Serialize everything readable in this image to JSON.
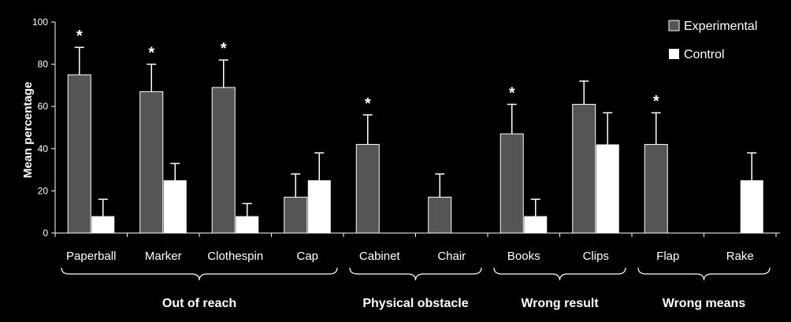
{
  "chart_data": {
    "type": "bar",
    "ylabel": "Mean percentage",
    "ylim": [
      0,
      100
    ],
    "yticks": [
      0,
      20,
      40,
      60,
      80,
      100
    ],
    "categories": [
      "Paperball",
      "Marker",
      "Clothespin",
      "Cap",
      "Cabinet",
      "Chair",
      "Books",
      "Clips",
      "Flap",
      "Rake"
    ],
    "series": [
      {
        "name": "Experimental",
        "color": "#555555",
        "values": [
          75,
          67,
          69,
          17,
          42,
          17,
          47,
          61,
          42,
          0
        ],
        "errors": [
          13,
          13,
          13,
          11,
          14,
          11,
          14,
          11,
          15,
          0
        ]
      },
      {
        "name": "Control",
        "color": "#ffffff",
        "values": [
          8,
          25,
          8,
          25,
          0,
          0,
          8,
          42,
          0,
          25
        ],
        "errors": [
          8,
          8,
          6,
          13,
          0,
          0,
          8,
          15,
          0,
          13
        ]
      }
    ],
    "significant": [
      "*",
      "*",
      "*",
      "",
      "*",
      "",
      "*",
      "",
      "*",
      ""
    ],
    "groups": [
      {
        "label": "Out of reach",
        "start": 0,
        "end": 3
      },
      {
        "label": "Physical obstacle",
        "start": 4,
        "end": 5
      },
      {
        "label": "Wrong result",
        "start": 6,
        "end": 7
      },
      {
        "label": "Wrong means",
        "start": 8,
        "end": 9
      }
    ],
    "legend_position": "top-right"
  }
}
